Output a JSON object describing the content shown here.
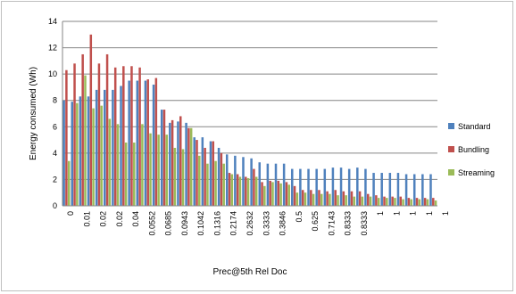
{
  "chart_data": {
    "type": "bar",
    "xlabel": "Prec@5th Rel Doc",
    "ylabel": "Energy consumed (Wh)",
    "ylim": [
      0,
      14
    ],
    "yticks": [
      0,
      2,
      4,
      6,
      8,
      10,
      12,
      14
    ],
    "grid": true,
    "legend_position": "right",
    "categories": [
      "0",
      "0",
      "0.01",
      "0.01",
      "0.02",
      "0.02",
      "0.02",
      "0.02",
      "0.04",
      "0.04",
      "0.0552",
      "0.0552",
      "0.0685",
      "0.0685",
      "0.0943",
      "0.0943",
      "0.1042",
      "0.1042",
      "0.1316",
      "0.1316",
      "0.2174",
      "0.2174",
      "0.2632",
      "0.2632",
      "0.3333",
      "0.3333",
      "0.3846",
      "0.3846",
      "0.5",
      "0.5",
      "0.625",
      "0.625",
      "0.7143",
      "0.7143",
      "0.8333",
      "0.8333",
      "0.8333",
      "0.8333",
      "1",
      "1",
      "1",
      "1",
      "1",
      "1",
      "1",
      "1"
    ],
    "tick_labels_shown": [
      "0",
      "0.01",
      "0.02",
      "0.02",
      "0.04",
      "0.0552",
      "0.0685",
      "0.0943",
      "0.1042",
      "0.1316",
      "0.2174",
      "0.2632",
      "0.3333",
      "0.3846",
      "0.5",
      "0.625",
      "0.7143",
      "0.8333",
      "0.8333",
      "1",
      "1",
      "1",
      "1",
      "1"
    ],
    "series": [
      {
        "name": "Standard",
        "color": "#4f81bd",
        "values": [
          8.0,
          7.9,
          8.3,
          8.3,
          8.8,
          8.8,
          8.8,
          9.1,
          9.5,
          9.5,
          9.5,
          9.2,
          7.3,
          6.3,
          6.4,
          6.3,
          5.2,
          5.2,
          4.9,
          4.4,
          3.9,
          3.8,
          3.7,
          3.6,
          3.3,
          3.2,
          3.2,
          3.2,
          2.8,
          2.8,
          2.8,
          2.8,
          2.8,
          2.9,
          2.9,
          2.8,
          2.9,
          2.8,
          2.5,
          2.5,
          2.5,
          2.5,
          2.4,
          2.4,
          2.4,
          2.4
        ]
      },
      {
        "name": "Bundling",
        "color": "#c0504d",
        "values": [
          10.3,
          10.8,
          11.5,
          13.0,
          10.8,
          11.5,
          10.5,
          10.6,
          10.6,
          10.5,
          9.6,
          9.7,
          7.3,
          6.5,
          6.8,
          5.9,
          5.0,
          4.4,
          4.9,
          4.0,
          2.5,
          2.4,
          2.2,
          2.8,
          1.8,
          1.9,
          1.9,
          1.8,
          1.5,
          1.2,
          1.2,
          1.2,
          1.1,
          1.2,
          1.1,
          1.1,
          1.1,
          0.9,
          0.8,
          0.7,
          0.7,
          0.7,
          0.6,
          0.6,
          0.6,
          0.6
        ]
      },
      {
        "name": "Streaming",
        "color": "#9bbb59",
        "values": [
          3.4,
          7.8,
          9.9,
          7.4,
          7.6,
          6.6,
          6.2,
          4.8,
          4.8,
          6.2,
          5.5,
          5.4,
          5.4,
          4.4,
          4.3,
          5.9,
          3.8,
          3.2,
          3.4,
          3.2,
          2.4,
          2.2,
          2.1,
          2.2,
          1.5,
          1.8,
          1.7,
          1.6,
          1.0,
          1.0,
          0.9,
          0.9,
          0.9,
          0.8,
          0.8,
          0.7,
          0.7,
          0.7,
          0.6,
          0.6,
          0.6,
          0.5,
          0.5,
          0.5,
          0.5,
          0.4
        ]
      }
    ]
  }
}
